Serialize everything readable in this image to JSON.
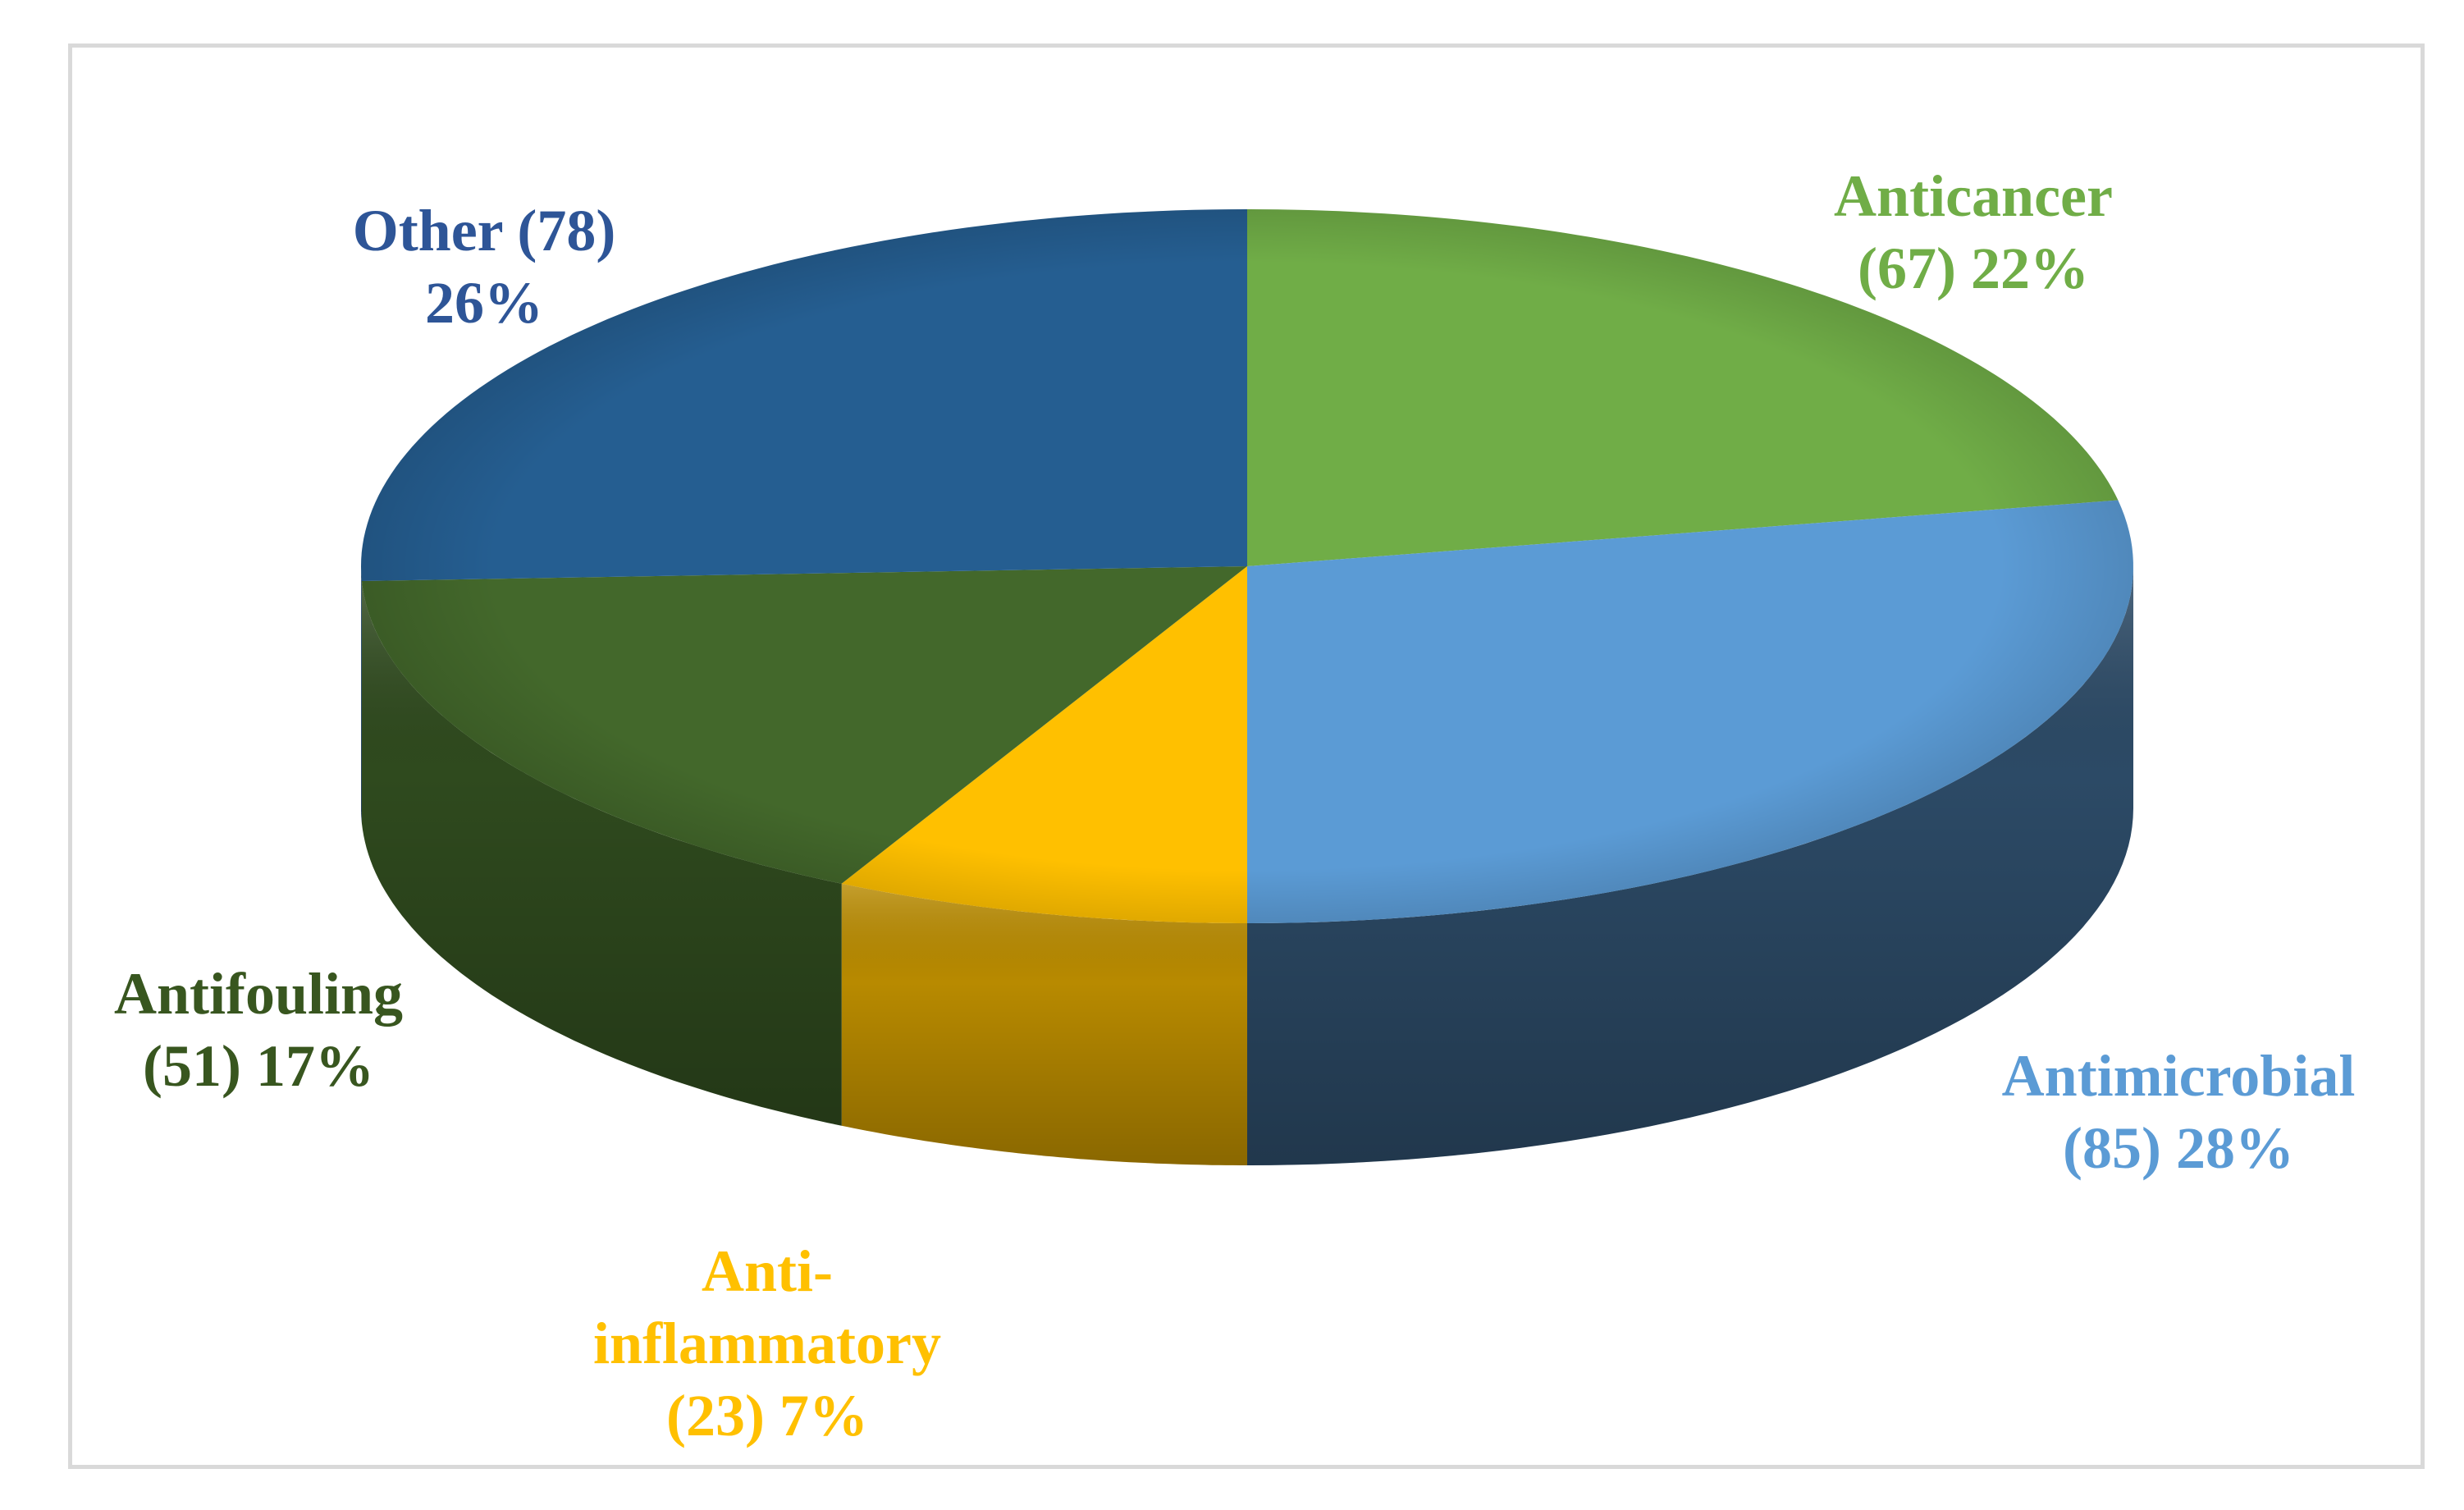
{
  "chart_data": {
    "type": "pie",
    "title": "",
    "style": "3d",
    "legend": "none",
    "slices": [
      {
        "name": "Anticancer",
        "value": 67,
        "percent": 22,
        "color": "#70AD47",
        "side_color": "#4F7A32",
        "label_lines": [
          "Anticancer",
          "(67) 22%"
        ]
      },
      {
        "name": "Antimicrobial",
        "value": 85,
        "percent": 28,
        "color": "#5B9BD5",
        "side_color": "#2C4A66",
        "label_lines": [
          "Antimicrobial",
          "(85) 28%"
        ]
      },
      {
        "name": "Anti-inflammatory",
        "value": 23,
        "percent": 7,
        "color": "#FFC000",
        "side_color": "#B88A00",
        "label_lines": [
          "Anti-",
          "inflammatory",
          "(23) 7%"
        ]
      },
      {
        "name": "Antifouling",
        "value": 51,
        "percent": 17,
        "color": "#43682B",
        "side_color": "#2F4A1E",
        "label_lines": [
          "Antifouling",
          "(51) 17%"
        ]
      },
      {
        "name": "Other",
        "value": 78,
        "percent": 26,
        "color": "#255E91",
        "side_color": "#1B4166",
        "label_lines": [
          "Other (78)",
          "26%"
        ]
      }
    ]
  }
}
